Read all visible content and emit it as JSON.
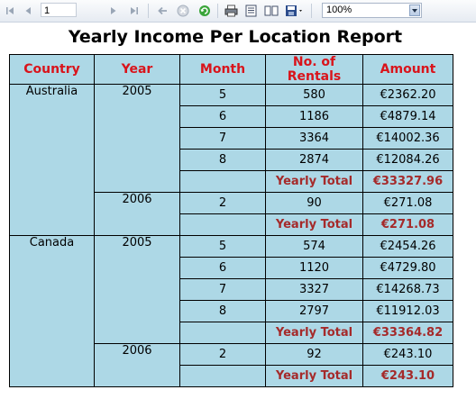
{
  "toolbar": {
    "page_number": "1",
    "zoom": "100%"
  },
  "report": {
    "title": "Yearly Income Per Location Report",
    "headers": [
      "Country",
      "Year",
      "Month",
      "No. of Rentals",
      "Amount"
    ],
    "countries": [
      {
        "name": "Australia",
        "years": [
          {
            "year": "2005",
            "rows": [
              {
                "month": "5",
                "rentals": "580",
                "amount": "€2362.20"
              },
              {
                "month": "6",
                "rentals": "1186",
                "amount": "€4879.14"
              },
              {
                "month": "7",
                "rentals": "3364",
                "amount": "€14002.36"
              },
              {
                "month": "8",
                "rentals": "2874",
                "amount": "€12084.26"
              }
            ],
            "total_label": "Yearly Total",
            "total": "€33327.96"
          },
          {
            "year": "2006",
            "rows": [
              {
                "month": "2",
                "rentals": "90",
                "amount": "€271.08"
              }
            ],
            "total_label": "Yearly Total",
            "total": "€271.08"
          }
        ]
      },
      {
        "name": "Canada",
        "years": [
          {
            "year": "2005",
            "rows": [
              {
                "month": "5",
                "rentals": "574",
                "amount": "€2454.26"
              },
              {
                "month": "6",
                "rentals": "1120",
                "amount": "€4729.80"
              },
              {
                "month": "7",
                "rentals": "3327",
                "amount": "€14268.73"
              },
              {
                "month": "8",
                "rentals": "2797",
                "amount": "€11912.03"
              }
            ],
            "total_label": "Yearly Total",
            "total": "€33364.82"
          },
          {
            "year": "2006",
            "rows": [
              {
                "month": "2",
                "rentals": "92",
                "amount": "€243.10"
              }
            ],
            "total_label": "Yearly Total",
            "total": "€243.10"
          }
        ]
      }
    ]
  },
  "colors": {
    "header_text": "#d9141b",
    "total_text": "#a52a2a",
    "table_background": "#add8e6"
  }
}
